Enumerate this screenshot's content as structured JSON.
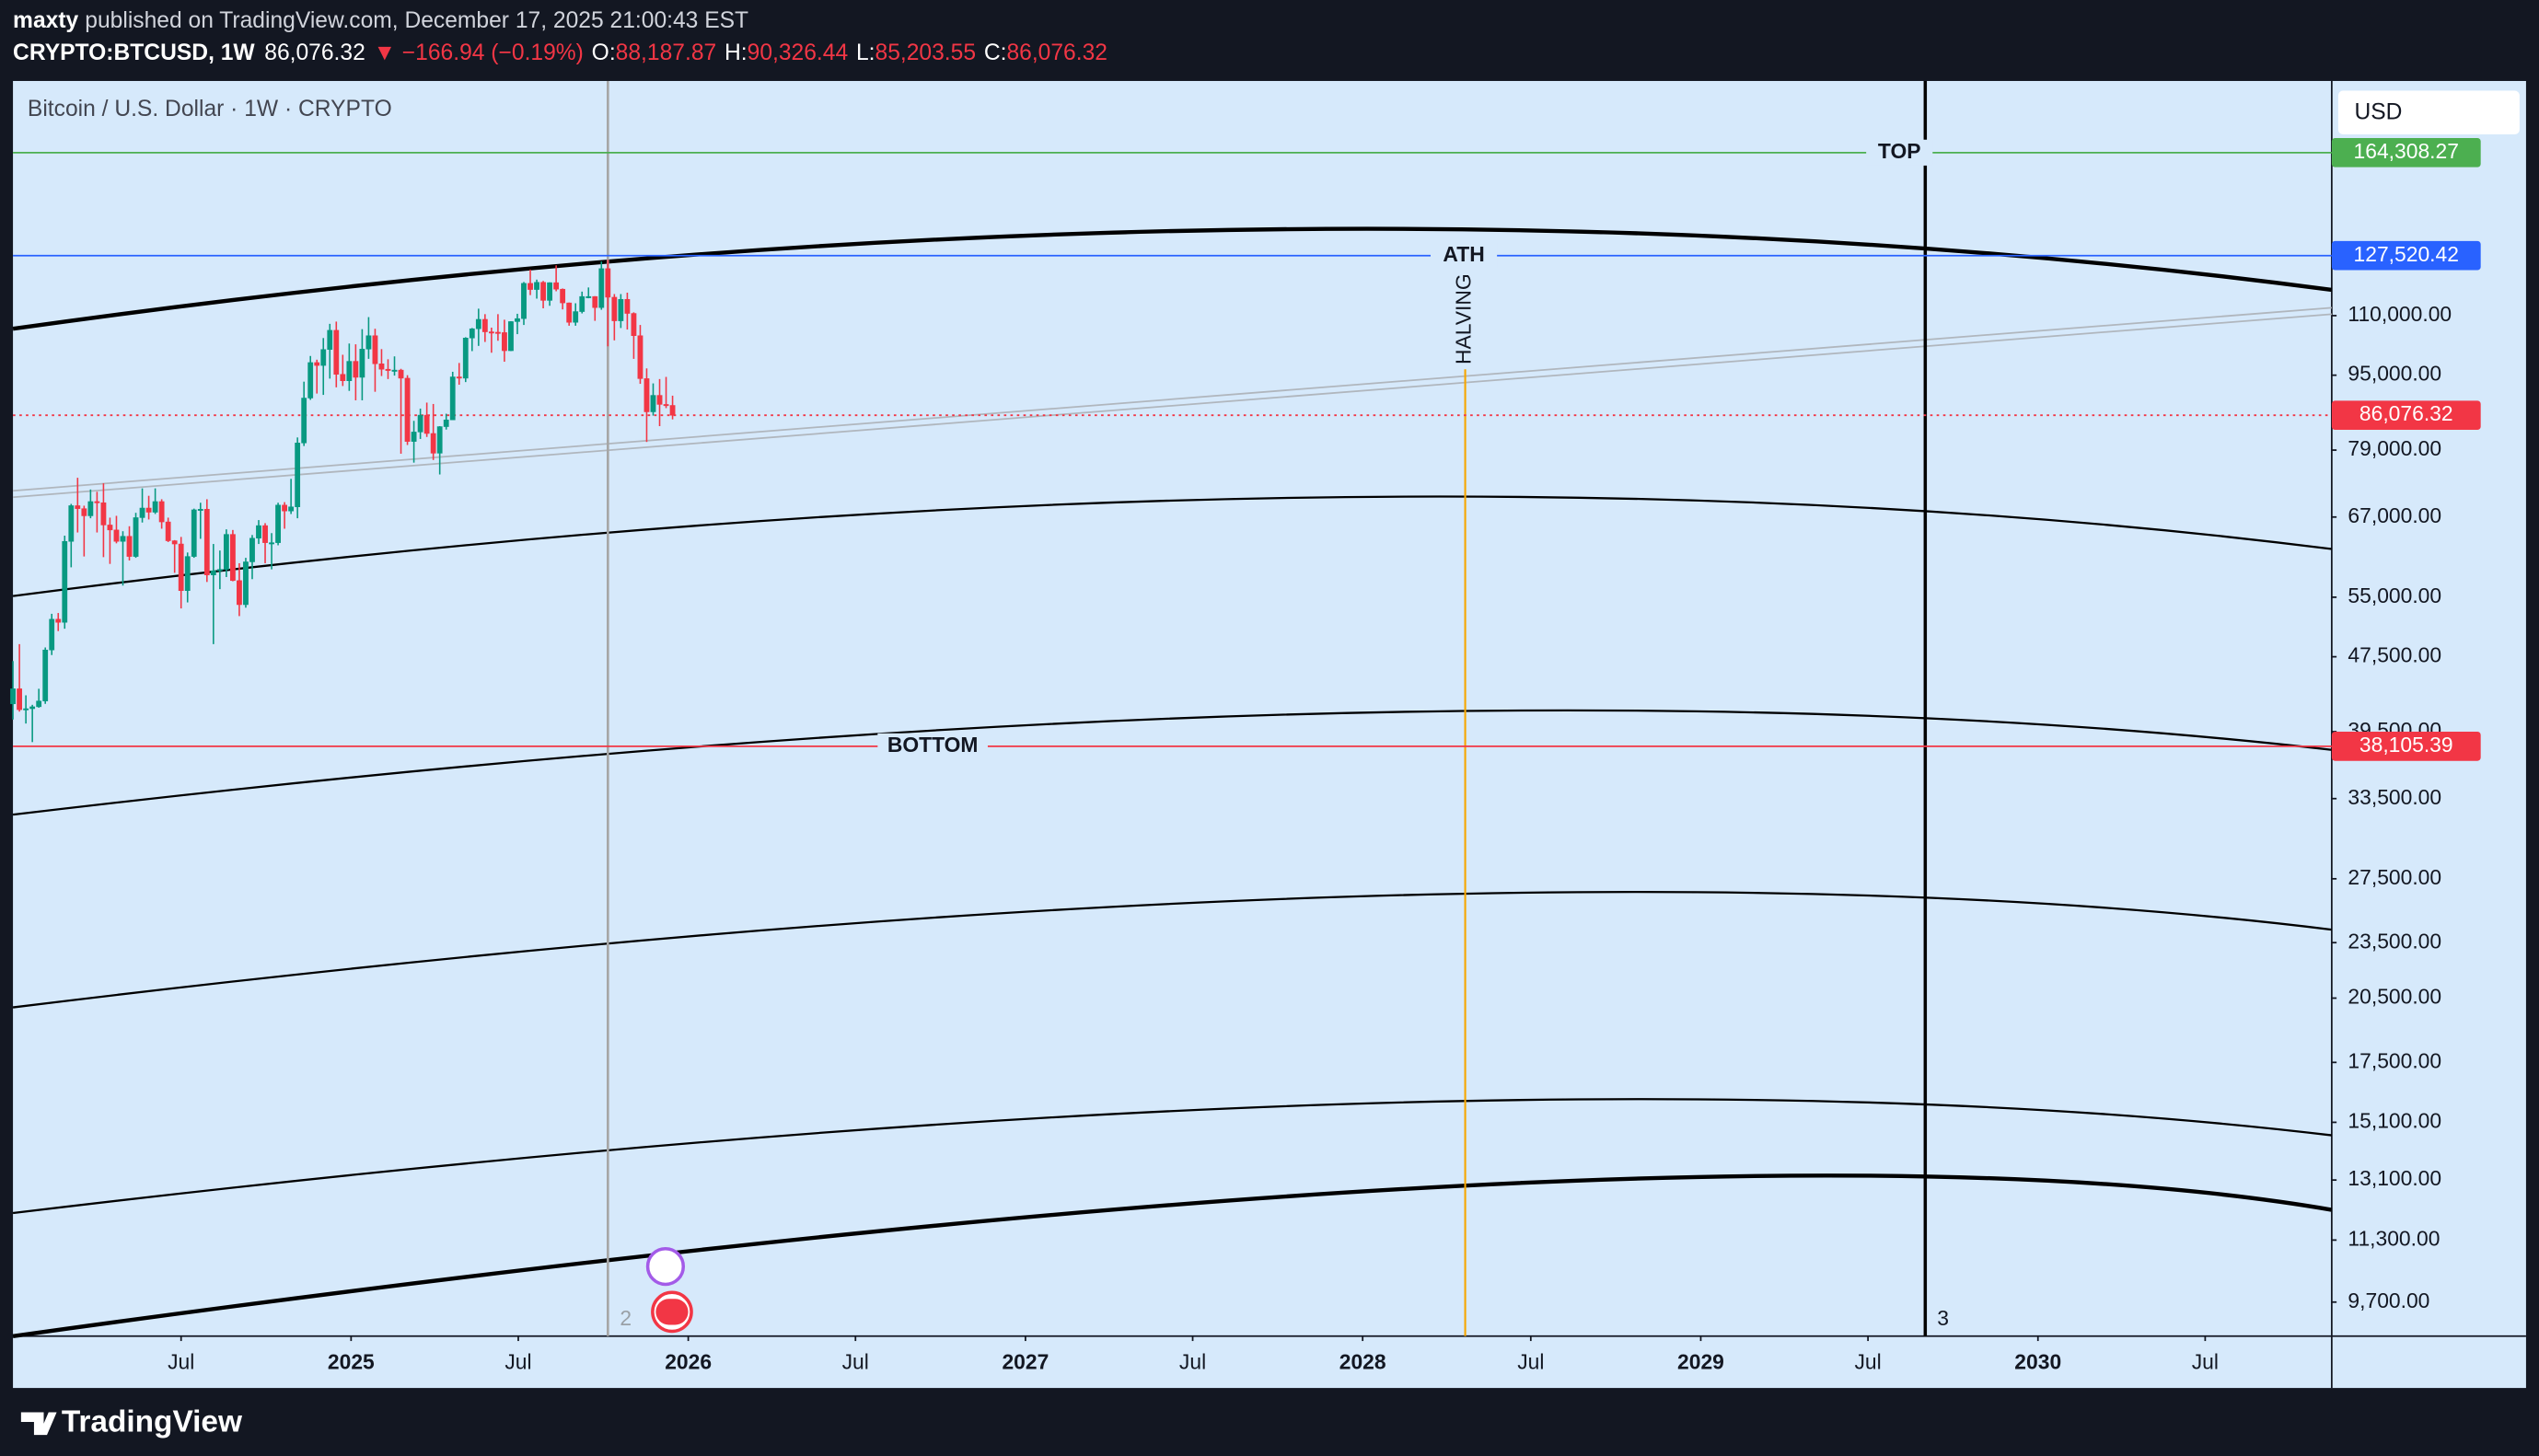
{
  "header": {
    "author": "maxty",
    "published": "published on TradingView.com, December 17, 2025 21:00:43 EST",
    "symbol": "CRYPTO:BTCUSD, 1W",
    "last": "86,076.32",
    "change": "▼ −166.94 (−0.19%)",
    "ohlc": [
      {
        "key": "O:",
        "value": "88,187.87"
      },
      {
        "key": "H:",
        "value": "90,326.44"
      },
      {
        "key": "L:",
        "value": "85,203.55"
      },
      {
        "key": "C:",
        "value": "86,076.32"
      }
    ]
  },
  "footer": {
    "brand": "TradingView"
  },
  "chart_data": {
    "type": "candlestick",
    "title": "Bitcoin / U.S. Dollar · 1W · CRYPTO",
    "currency": "USD",
    "log_scale": true,
    "up_color": "#089981",
    "down_color": "#f23645",
    "xlim": [
      "2024-01-01",
      "2030-11-15"
    ],
    "xticks": [
      {
        "value": "2024-07-01",
        "label": "Jul"
      },
      {
        "value": "2025-01-01",
        "label": "2025"
      },
      {
        "value": "2025-07-01",
        "label": "Jul"
      },
      {
        "value": "2026-01-01",
        "label": "2026"
      },
      {
        "value": "2026-07-01",
        "label": "Jul"
      },
      {
        "value": "2027-01-01",
        "label": "2027"
      },
      {
        "value": "2027-07-01",
        "label": "Jul"
      },
      {
        "value": "2028-01-01",
        "label": "2028"
      },
      {
        "value": "2028-07-01",
        "label": "Jul"
      },
      {
        "value": "2029-01-01",
        "label": "2029"
      },
      {
        "value": "2029-07-01",
        "label": "Jul"
      },
      {
        "value": "2030-01-01",
        "label": "2030"
      },
      {
        "value": "2030-07-01",
        "label": "Jul"
      }
    ],
    "ylim": [
      8920,
      196000
    ],
    "yticks": [
      {
        "value": 110000,
        "label": "110,000.00"
      },
      {
        "value": 95000,
        "label": "95,000.00"
      },
      {
        "value": 79000,
        "label": "79,000.00"
      },
      {
        "value": 67000,
        "label": "67,000.00"
      },
      {
        "value": 55000,
        "label": "55,000.00"
      },
      {
        "value": 47500,
        "label": "47,500.00"
      },
      {
        "value": 39500,
        "label": "39,500.00"
      },
      {
        "value": 33500,
        "label": "33,500.00"
      },
      {
        "value": 27500,
        "label": "27,500.00"
      },
      {
        "value": 23500,
        "label": "23,500.00"
      },
      {
        "value": 20500,
        "label": "20,500.00"
      },
      {
        "value": 17500,
        "label": "17,500.00"
      },
      {
        "value": 15100,
        "label": "15,100.00"
      },
      {
        "value": 13100,
        "label": "13,100.00"
      },
      {
        "value": 11300,
        "label": "11,300.00"
      },
      {
        "value": 9700,
        "label": "9,700.00"
      }
    ],
    "levels": [
      {
        "name": "TOP",
        "value": 164308.27,
        "label": "164,308.27",
        "color": "#4caf50"
      },
      {
        "name": "ATH",
        "value": 127520.42,
        "label": "127,520.42",
        "color": "#2962ff"
      },
      {
        "value": 86076.32,
        "label": "86,076.32",
        "color": "#f23645",
        "dotted": true
      },
      {
        "name": "BOTTOM",
        "value": 38105.39,
        "label": "38,105.39",
        "color": "#f23645"
      }
    ],
    "markers": [
      {
        "x": "2025-10-06",
        "label": "2",
        "color": "#a6a6a6"
      },
      {
        "x": "2028-04-21",
        "label": "HALVING",
        "color": "#f7a600"
      },
      {
        "x": "2029-09-01",
        "label": "3",
        "color": "#000000"
      }
    ],
    "x": [
      "2024-01-01",
      "2024-01-08",
      "2024-01-15",
      "2024-01-22",
      "2024-01-29",
      "2024-02-05",
      "2024-02-12",
      "2024-02-19",
      "2024-02-26",
      "2024-03-04",
      "2024-03-11",
      "2024-03-18",
      "2024-03-25",
      "2024-04-01",
      "2024-04-08",
      "2024-04-15",
      "2024-04-22",
      "2024-04-29",
      "2024-05-06",
      "2024-05-13",
      "2024-05-20",
      "2024-05-27",
      "2024-06-03",
      "2024-06-10",
      "2024-06-17",
      "2024-06-24",
      "2024-07-01",
      "2024-07-08",
      "2024-07-15",
      "2024-07-22",
      "2024-07-29",
      "2024-08-05",
      "2024-08-12",
      "2024-08-19",
      "2024-08-26",
      "2024-09-02",
      "2024-09-09",
      "2024-09-16",
      "2024-09-23",
      "2024-09-30",
      "2024-10-07",
      "2024-10-14",
      "2024-10-21",
      "2024-10-28",
      "2024-11-04",
      "2024-11-11",
      "2024-11-18",
      "2024-11-25",
      "2024-12-02",
      "2024-12-09",
      "2024-12-16",
      "2024-12-23",
      "2024-12-30",
      "2025-01-06",
      "2025-01-13",
      "2025-01-20",
      "2025-01-27",
      "2025-02-03",
      "2025-02-10",
      "2025-02-17",
      "2025-02-24",
      "2025-03-03",
      "2025-03-10",
      "2025-03-17",
      "2025-03-24",
      "2025-03-31",
      "2025-04-07",
      "2025-04-14",
      "2025-04-21",
      "2025-04-28",
      "2025-05-05",
      "2025-05-12",
      "2025-05-19",
      "2025-05-26",
      "2025-06-02",
      "2025-06-09",
      "2025-06-16",
      "2025-06-23",
      "2025-06-30",
      "2025-07-07",
      "2025-07-14",
      "2025-07-21",
      "2025-07-28",
      "2025-08-04",
      "2025-08-11",
      "2025-08-18",
      "2025-08-25",
      "2025-09-01",
      "2025-09-08",
      "2025-09-15",
      "2025-09-22",
      "2025-09-29",
      "2025-10-06",
      "2025-10-13",
      "2025-10-20",
      "2025-10-27",
      "2025-11-03",
      "2025-11-10",
      "2025-11-17",
      "2025-11-24",
      "2025-12-01",
      "2025-12-08",
      "2025-12-15"
    ],
    "open": [
      42300,
      43900,
      41700,
      41800,
      42000,
      42600,
      48300,
      52100,
      51700,
      63100,
      68900,
      68400,
      67200,
      69600,
      69400,
      65700,
      64900,
      63100,
      63900,
      60800,
      66900,
      68500,
      67800,
      69600,
      66200,
      63200,
      62700,
      55900,
      60800,
      68200,
      68300,
      58100,
      58700,
      58900,
      64200,
      57300,
      54000,
      60000,
      63600,
      65600,
      62900,
      62900,
      69000,
      68000,
      68700,
      80400,
      89800,
      98000,
      97300,
      101200,
      106100,
      95200,
      93700,
      98300,
      94500,
      101300,
      104700,
      97700,
      96400,
      96100,
      96200,
      94300,
      80700,
      82600,
      86100,
      82300,
      78400,
      83700,
      85100,
      94600,
      94300,
      104100,
      106500,
      109000,
      105700,
      105600,
      105500,
      100900,
      108400,
      109200,
      119100,
      117300,
      119400,
      114200,
      119300,
      117400,
      113500,
      108200,
      111100,
      115300,
      115300,
      112200,
      123500,
      115100,
      108600,
      114500,
      110600,
      104700,
      94200,
      86800,
      90400,
      88400,
      88187.87
    ],
    "high": [
      47000,
      49000,
      43200,
      42200,
      43900,
      48600,
      52800,
      52900,
      64000,
      69200,
      73800,
      68900,
      71700,
      71300,
      72800,
      66900,
      67200,
      64700,
      65500,
      67700,
      71900,
      70600,
      71900,
      70000,
      66900,
      63300,
      63800,
      61400,
      68400,
      69400,
      70000,
      62700,
      61700,
      65000,
      64900,
      59800,
      60600,
      64100,
      66500,
      66000,
      64400,
      69400,
      69500,
      73600,
      81500,
      93500,
      99600,
      98700,
      104100,
      107800,
      108400,
      99900,
      102700,
      102500,
      106400,
      109600,
      106500,
      101300,
      98800,
      99500,
      96500,
      95000,
      84900,
      87500,
      88800,
      88500,
      83800,
      86400,
      95800,
      97900,
      104300,
      106700,
      111900,
      110400,
      106800,
      110400,
      108900,
      108500,
      110500,
      119500,
      123200,
      120200,
      119800,
      119400,
      124500,
      117600,
      113600,
      113400,
      116700,
      117900,
      115400,
      125700,
      126200,
      116000,
      116000,
      116400,
      110900,
      107500,
      96600,
      93100,
      94100,
      94600,
      90326.44
    ],
    "low": [
      40700,
      41500,
      40300,
      38500,
      41900,
      42300,
      47700,
      50600,
      50900,
      59200,
      64500,
      60800,
      66800,
      64500,
      60700,
      59700,
      62800,
      56600,
      60200,
      60600,
      66100,
      66600,
      67500,
      65100,
      63000,
      58400,
      53500,
      54300,
      60600,
      63500,
      57100,
      49000,
      56100,
      57800,
      57200,
      52500,
      53600,
      57500,
      62700,
      59800,
      58900,
      62500,
      65100,
      67500,
      66800,
      79800,
      89400,
      90800,
      90500,
      94200,
      92200,
      92500,
      91400,
      89300,
      89300,
      98900,
      91200,
      94800,
      94100,
      94900,
      78300,
      80000,
      76600,
      81200,
      81600,
      77100,
      74400,
      83100,
      85100,
      92800,
      93400,
      100800,
      102100,
      103100,
      100400,
      103400,
      98200,
      100800,
      105100,
      107500,
      115700,
      114700,
      112000,
      112700,
      116800,
      111700,
      107300,
      107300,
      110600,
      114800,
      108600,
      111600,
      102000,
      103500,
      106700,
      106300,
      98900,
      93000,
      80600,
      86000,
      83800,
      87600,
      85203.55
    ],
    "close": [
      43900,
      41700,
      41800,
      42000,
      42600,
      48300,
      52100,
      51700,
      63100,
      68900,
      68400,
      67200,
      69600,
      69400,
      65700,
      64900,
      63100,
      63900,
      60800,
      66900,
      68500,
      67800,
      69600,
      66200,
      63200,
      62700,
      55900,
      60800,
      68200,
      68300,
      58100,
      58700,
      58900,
      64200,
      57300,
      54000,
      60000,
      63600,
      65600,
      62900,
      62900,
      69000,
      68000,
      68700,
      80400,
      89800,
      98000,
      97300,
      101200,
      106100,
      95200,
      93700,
      98300,
      94500,
      101300,
      104700,
      97700,
      96400,
      96100,
      96200,
      94300,
      80700,
      82600,
      86100,
      82300,
      78400,
      83700,
      85100,
      94600,
      94300,
      104100,
      106500,
      109000,
      105700,
      105600,
      105500,
      100900,
      108400,
      109200,
      119100,
      117300,
      119400,
      114200,
      119300,
      117400,
      113500,
      108200,
      111100,
      115300,
      115300,
      112200,
      123500,
      115100,
      108600,
      114500,
      110600,
      104700,
      94200,
      86800,
      90400,
      88400,
      88200,
      86076.32
    ]
  }
}
